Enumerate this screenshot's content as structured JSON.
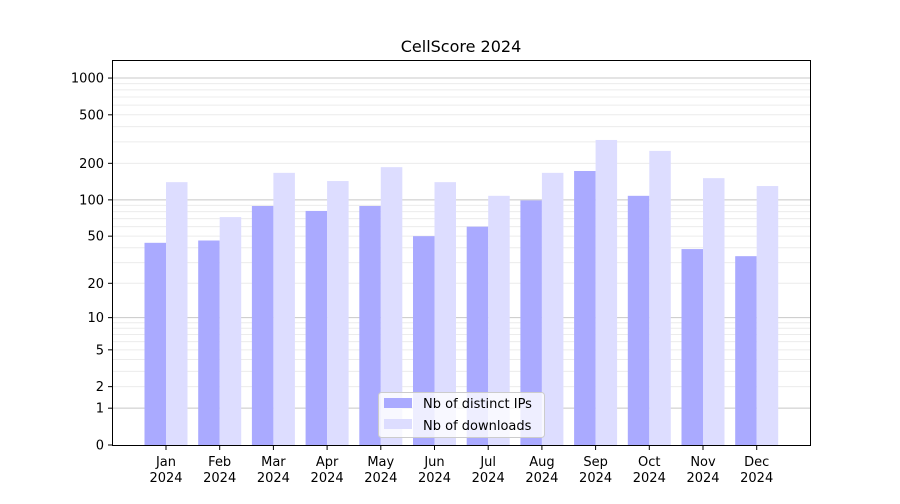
{
  "chart_data": {
    "type": "bar",
    "title": "CellScore 2024",
    "xlabel": "",
    "ylabel": "",
    "yscale": "log(1+y)",
    "ylim": [
      0,
      1400
    ],
    "yticks": [
      0,
      1,
      2,
      5,
      10,
      20,
      50,
      100,
      200,
      500,
      1000
    ],
    "grid": true,
    "legend_position": "lower-center",
    "categories": [
      "Jan\n2024",
      "Feb\n2024",
      "Mar\n2024",
      "Apr\n2024",
      "May\n2024",
      "Jun\n2024",
      "Jul\n2024",
      "Aug\n2024",
      "Sep\n2024",
      "Oct\n2024",
      "Nov\n2024",
      "Dec\n2024"
    ],
    "series": [
      {
        "name": "Nb of distinct IPs",
        "color": "#aaaaff",
        "values": [
          44,
          46,
          89,
          81,
          89,
          50,
          60,
          99,
          173,
          108,
          39,
          34
        ]
      },
      {
        "name": "Nb of downloads",
        "color": "#ddddff",
        "values": [
          140,
          72,
          167,
          143,
          186,
          140,
          108,
          167,
          311,
          253,
          151,
          130
        ]
      }
    ]
  }
}
